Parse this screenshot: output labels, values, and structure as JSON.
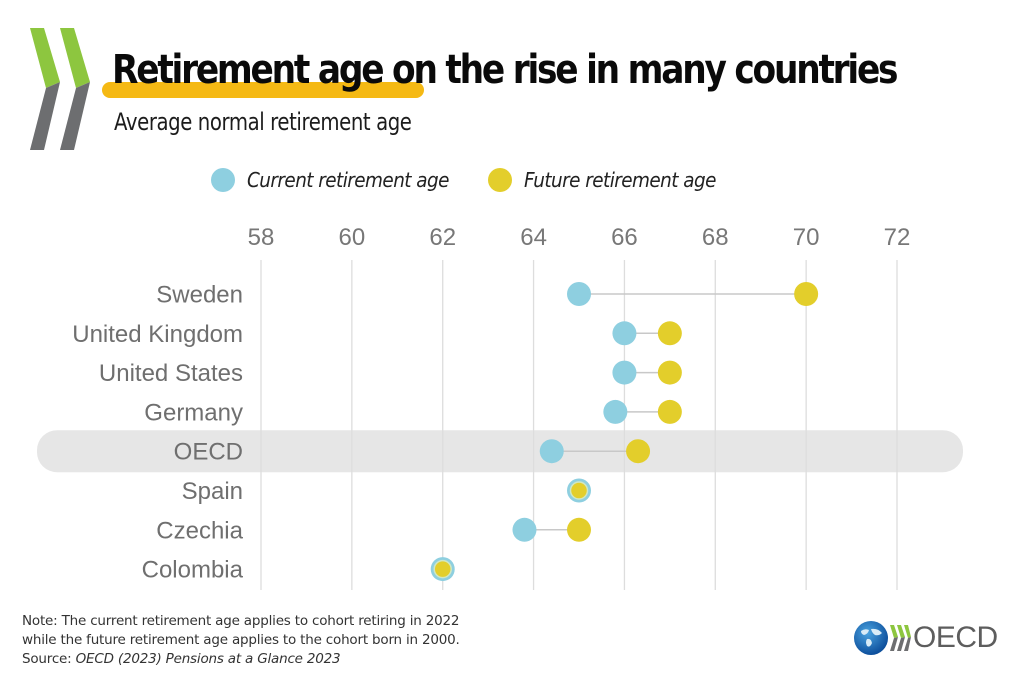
{
  "header": {
    "title": "Retirement age on the rise in many countries",
    "subtitle": "Average normal retirement age",
    "highlight_color": "#f5b914"
  },
  "legend": {
    "items": [
      {
        "label": "Current retirement age",
        "color": "#8ecfe0"
      },
      {
        "label": "Future retirement age",
        "color": "#e3ce2b"
      }
    ]
  },
  "chart_data": {
    "type": "scatter",
    "subtype": "dumbbell",
    "title": "Retirement age on the rise in many countries",
    "subtitle": "Average normal retirement age",
    "xlabel": "",
    "ylabel": "",
    "xlim": [
      58,
      72
    ],
    "xticks": [
      "58",
      "60",
      "62",
      "64",
      "66",
      "68",
      "70",
      "72"
    ],
    "grid": true,
    "legend_position": "top",
    "categories": [
      "Sweden",
      "United Kingdom",
      "United States",
      "Germany",
      "OECD",
      "Spain",
      "Czechia",
      "Colombia"
    ],
    "highlighted_category": "OECD",
    "series": [
      {
        "name": "Current retirement age",
        "color": "#8ecfe0",
        "values": [
          65.0,
          66.0,
          66.0,
          65.8,
          64.4,
          65.0,
          63.8,
          62.0
        ]
      },
      {
        "name": "Future retirement age",
        "color": "#e3ce2b",
        "values": [
          70.0,
          67.0,
          67.0,
          67.0,
          66.3,
          65.0,
          65.0,
          62.0
        ]
      }
    ]
  },
  "footer": {
    "note_line1": "Note: The current retirement age applies to cohort retiring in 2022",
    "note_line2": "while the future retirement age applies to the cohort born in 2000.",
    "source_prefix": "Source: ",
    "source_text": "OECD (2023) Pensions at a Glance 2023",
    "logo_text": "OECD"
  },
  "colors": {
    "chevron_green": "#8dc63f",
    "chevron_grey": "#6d6e70",
    "grid": "#dddddd",
    "band": "#e6e6e6",
    "connector": "#c8c8c8"
  }
}
